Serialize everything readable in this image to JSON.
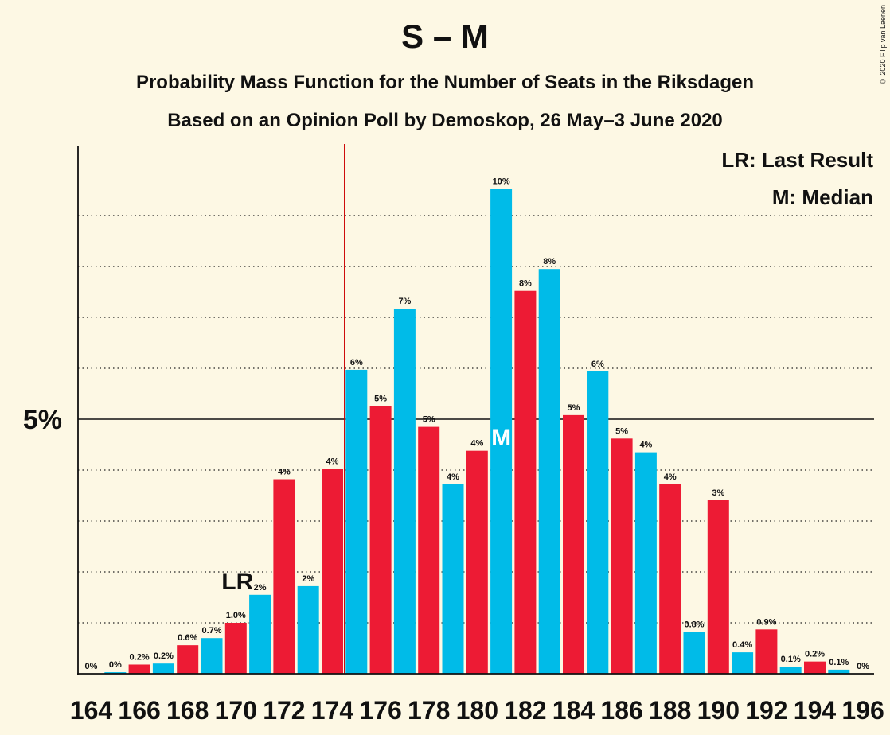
{
  "title": "S – M",
  "subtitle": "Probability Mass Function for the Number of Seats in the Riksdagen",
  "subtitle2": "Based on an Opinion Poll by Demoskop, 26 May–3 June 2020",
  "copyright": "© 2020 Filip van Laenen",
  "legend": {
    "lr": "LR: Last Result",
    "median": "M: Median"
  },
  "colors": {
    "blue": "#00bbe8",
    "red": "#ed1b34",
    "background": "#fdf8e4",
    "threshold": "#cc0000"
  },
  "chart_data": {
    "type": "bar",
    "title": "S – M",
    "x": [
      164,
      165,
      166,
      167,
      168,
      169,
      170,
      171,
      172,
      173,
      174,
      175,
      176,
      177,
      178,
      179,
      180,
      181,
      182,
      183,
      184,
      185,
      186,
      187,
      188,
      189,
      190,
      191,
      192,
      193,
      194,
      195,
      196
    ],
    "values": [
      0.0,
      0.03,
      0.18,
      0.2,
      0.56,
      0.7,
      1.0,
      1.55,
      3.82,
      1.72,
      4.02,
      5.97,
      5.26,
      7.17,
      4.85,
      3.72,
      4.38,
      9.52,
      7.52,
      7.95,
      5.08,
      5.94,
      4.62,
      4.35,
      3.72,
      0.82,
      3.41,
      0.42,
      0.87,
      0.14,
      0.24,
      0.08,
      0.0
    ],
    "labels": [
      "0%",
      "0%",
      "0.2%",
      "0.2%",
      "0.6%",
      "0.7%",
      "1.0%",
      "2%",
      "4%",
      "2%",
      "4%",
      "6%",
      "5%",
      "7%",
      "5%",
      "4%",
      "4%",
      "10%",
      "8%",
      "8%",
      "5%",
      "6%",
      "5%",
      "4%",
      "4%",
      "0.8%",
      "3%",
      "0.4%",
      "0.9%",
      "0.1%",
      "0.2%",
      "0.1%",
      "0%"
    ],
    "colors": [
      "blue",
      "blue",
      "red",
      "blue",
      "red",
      "blue",
      "red",
      "blue",
      "red",
      "blue",
      "red",
      "blue",
      "red",
      "blue",
      "red",
      "blue",
      "red",
      "blue",
      "red",
      "blue",
      "red",
      "blue",
      "red",
      "blue",
      "red",
      "blue",
      "red",
      "blue",
      "red",
      "blue",
      "red",
      "blue",
      "red"
    ],
    "x_tick_labels": [
      "164",
      "166",
      "168",
      "170",
      "172",
      "174",
      "176",
      "178",
      "180",
      "182",
      "184",
      "186",
      "188",
      "190",
      "192",
      "194",
      "196"
    ],
    "y_tick_label": "5%",
    "y_tick_value": 5,
    "ylim": [
      0,
      10.3
    ],
    "last_result": 170,
    "last_result_label": "LR",
    "median": 181,
    "median_label": "M",
    "majority_threshold": 175,
    "grid": "dotted every 1%"
  }
}
